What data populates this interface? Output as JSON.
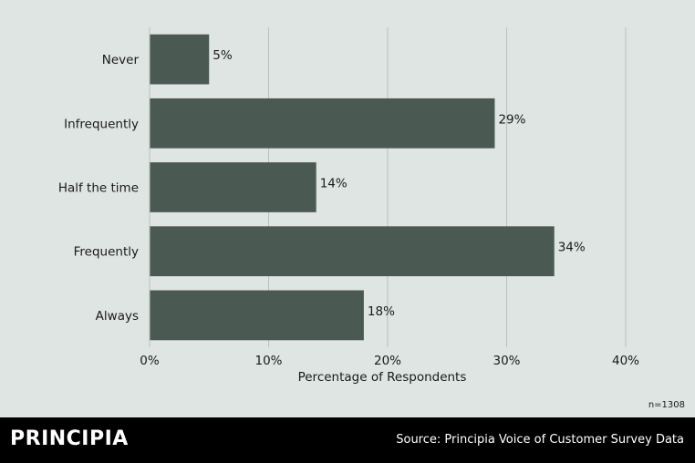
{
  "chart_data": {
    "type": "bar",
    "orientation": "horizontal",
    "categories": [
      "Never",
      "Infrequently",
      "Half the time",
      "Frequently",
      "Always"
    ],
    "values": [
      5,
      29,
      14,
      34,
      18
    ],
    "value_labels": [
      "5%",
      "29%",
      "14%",
      "34%",
      "18%"
    ],
    "xlabel": "Percentage of Respondents",
    "ylabel": "",
    "xlim": [
      0,
      40
    ],
    "x_ticks": [
      0,
      10,
      20,
      30,
      40
    ],
    "x_tick_labels": [
      "0%",
      "10%",
      "20%",
      "30%",
      "40%"
    ],
    "grid": "vertical",
    "bar_color": "#4a5a52",
    "grid_color": "#b9c0bd"
  },
  "sample_size": "n=1308",
  "footer": {
    "brand": "PRINCIPIA",
    "source": "Source: Principia Voice of Customer Survey Data"
  }
}
